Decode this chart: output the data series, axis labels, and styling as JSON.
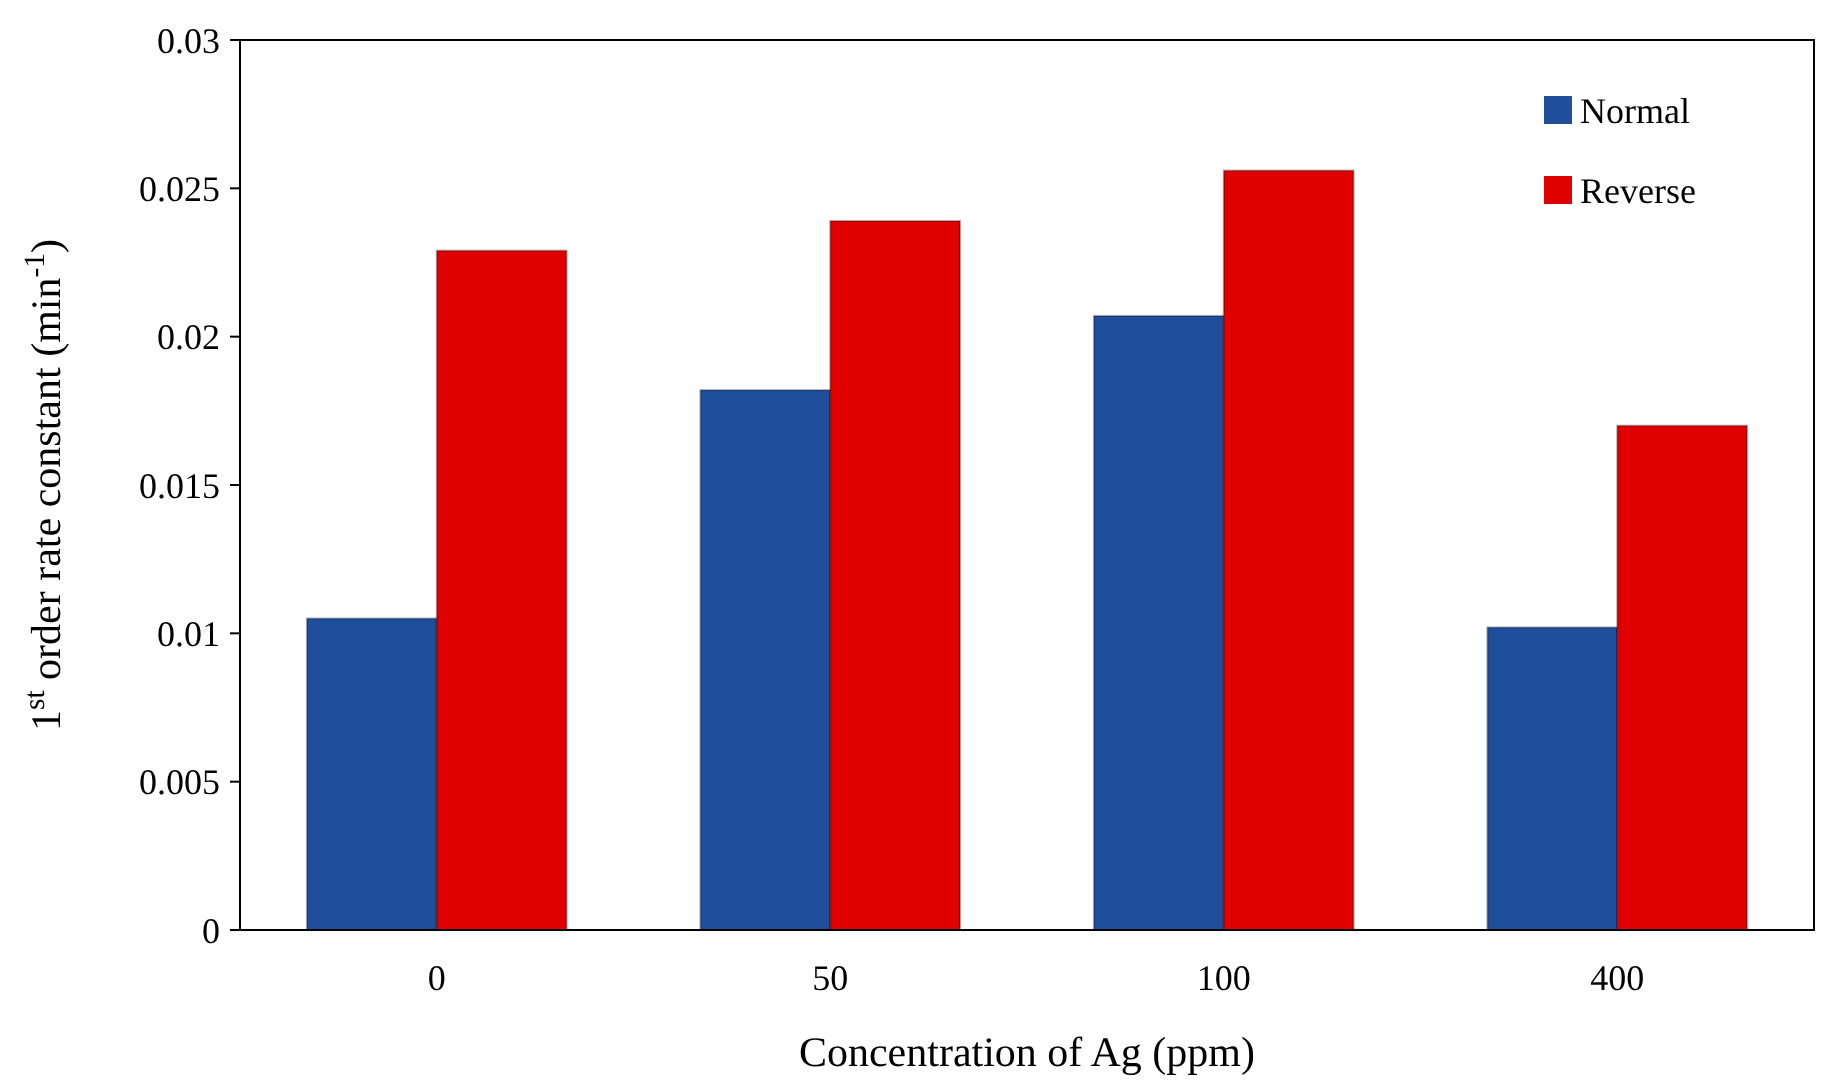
{
  "chart_data": {
    "type": "bar",
    "xlabel": "Concentration of Ag (ppm)",
    "ylabel": "1$^{st}$ order rate constant (min$^{-1}$)",
    "categories": [
      "0",
      "50",
      "100",
      "400"
    ],
    "series": [
      {
        "name": "Normal",
        "color": "#1f4e9c",
        "values": [
          0.0105,
          0.0182,
          0.0207,
          0.0102
        ]
      },
      {
        "name": "Reverse",
        "color": "#e00000",
        "values": [
          0.0229,
          0.0239,
          0.0256,
          0.017
        ]
      }
    ],
    "ylim": [
      0,
      0.03
    ],
    "yticks": [
      0,
      0.005,
      0.01,
      0.015,
      0.02,
      0.025,
      0.03
    ],
    "grid": false,
    "legend": "top right"
  }
}
